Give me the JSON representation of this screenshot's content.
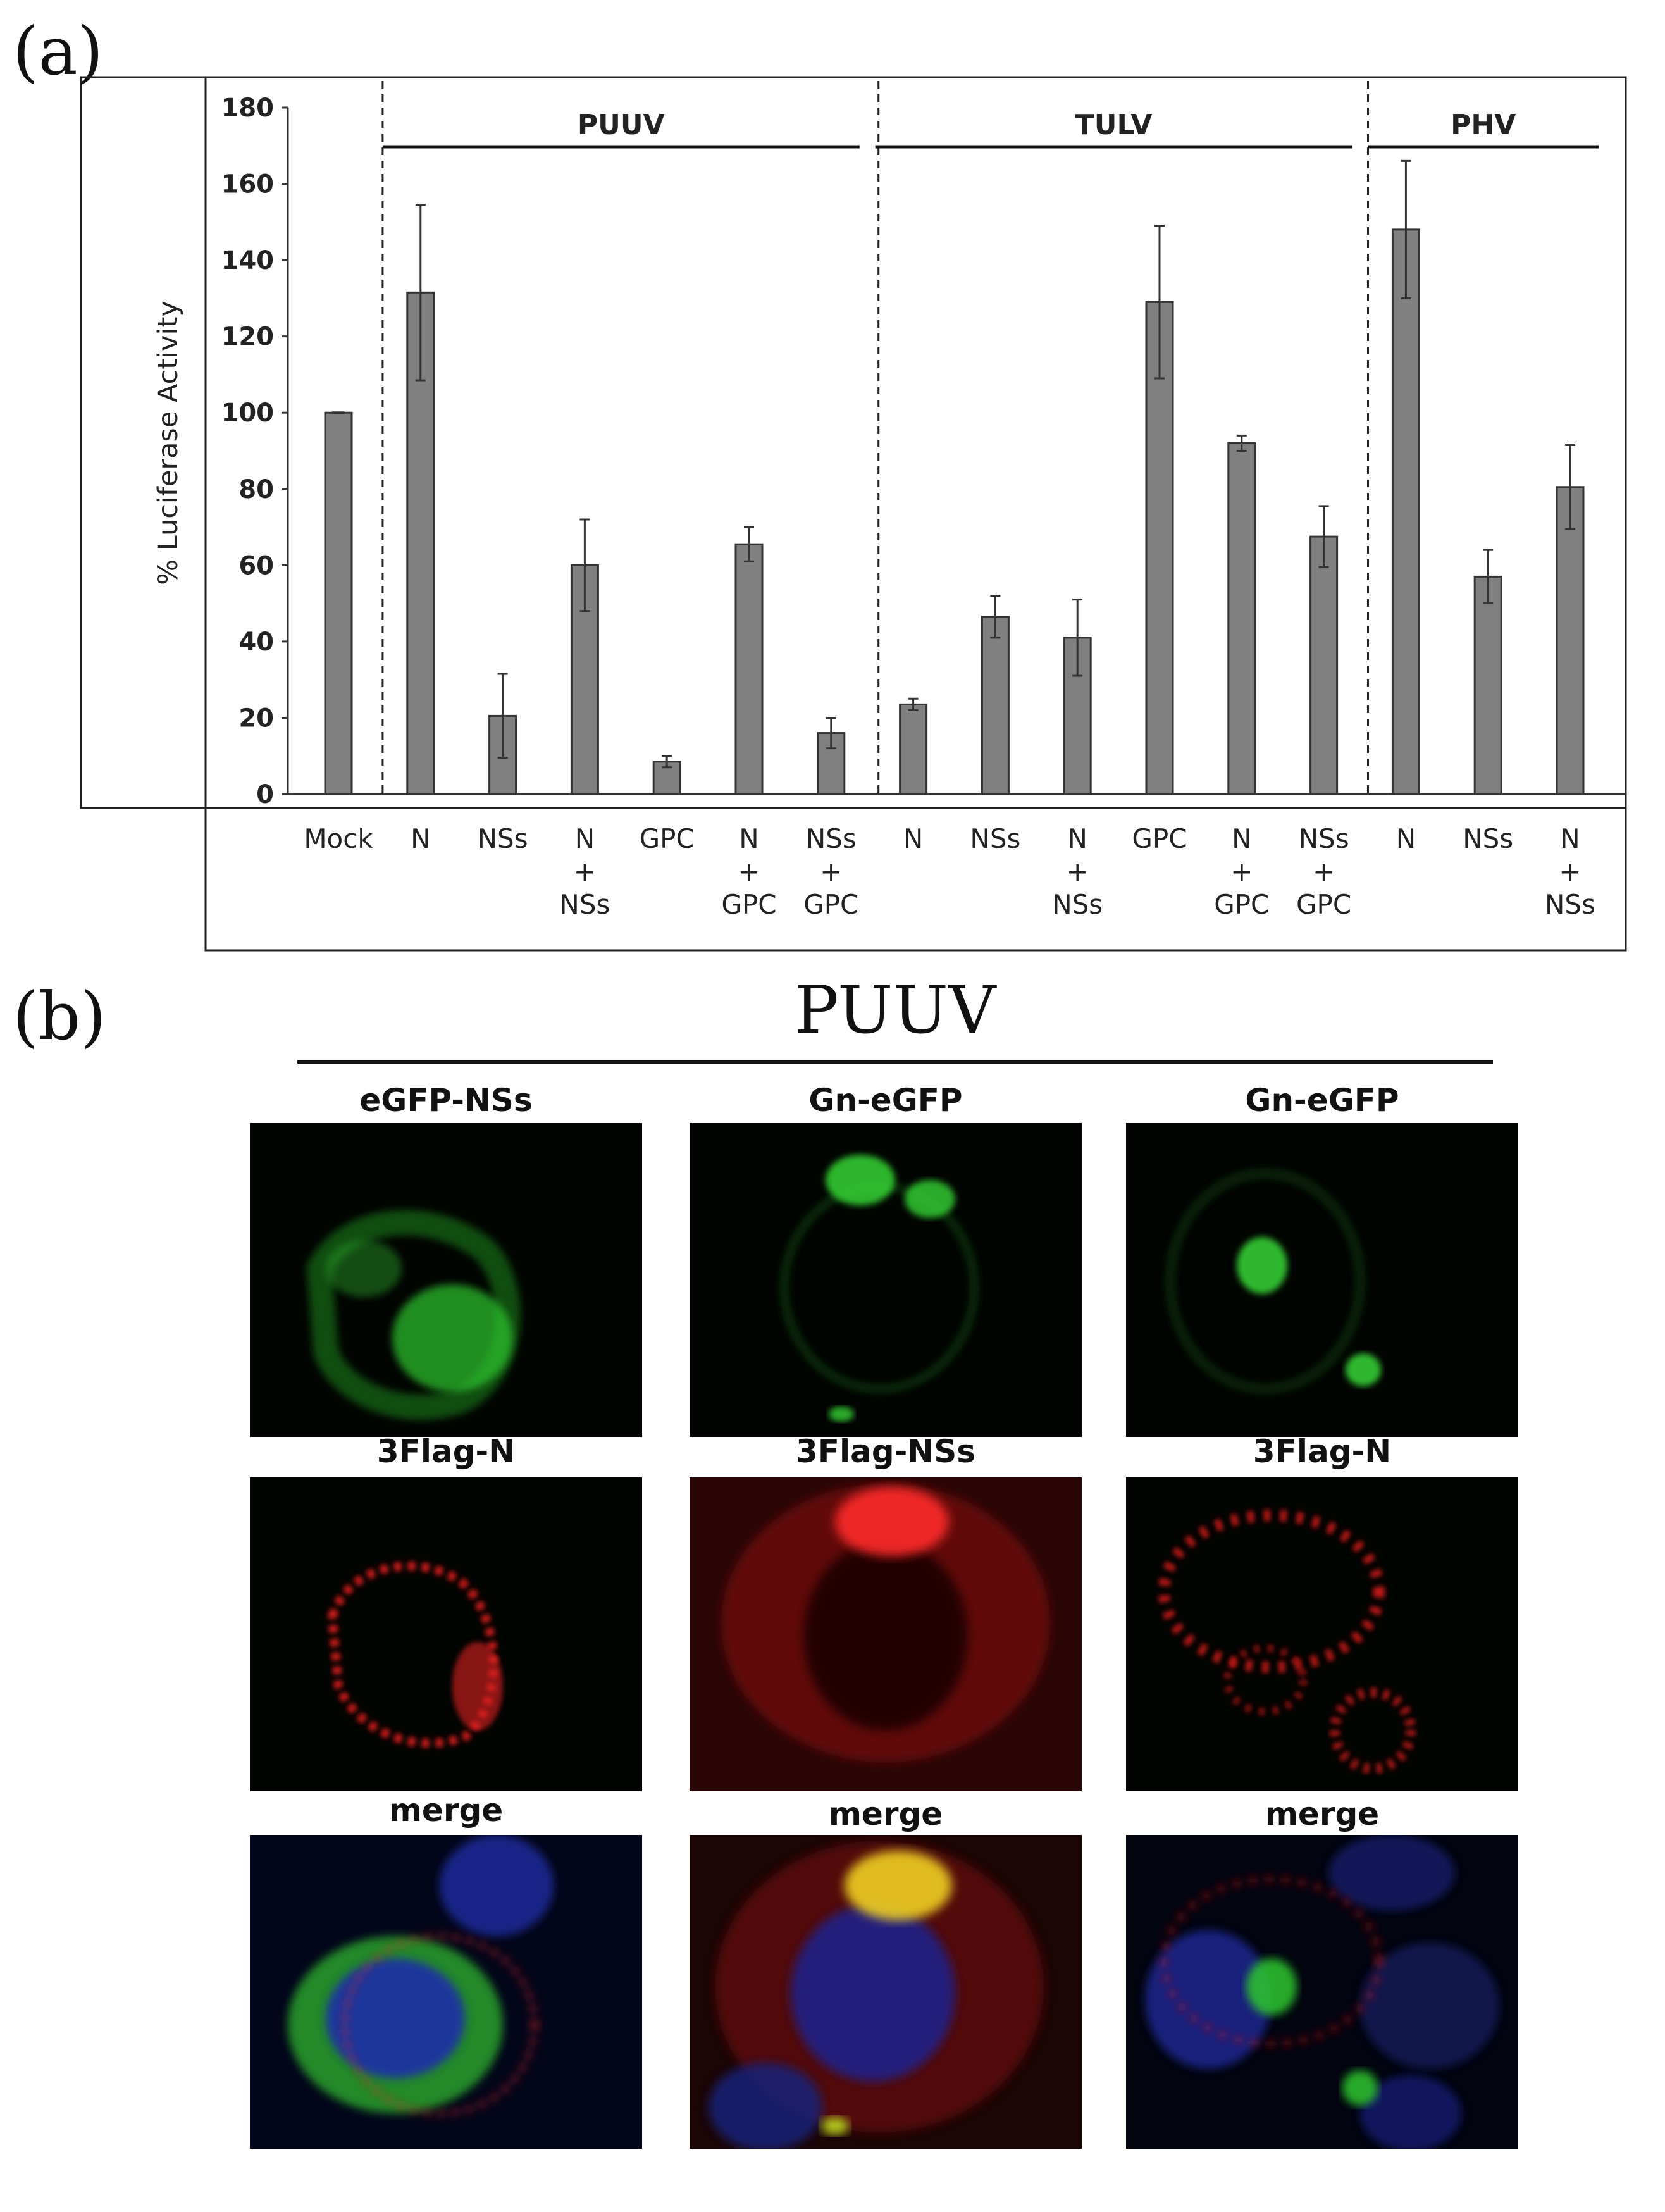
{
  "panel_a_label": "(a)",
  "panel_b_label": "(b)",
  "chart_data": {
    "type": "bar",
    "ylabel": "% Luciferase Activity",
    "ylim": [
      0,
      180
    ],
    "yticks": [
      "0",
      "20",
      "40",
      "60",
      "80",
      "100",
      "120",
      "140",
      "160",
      "180"
    ],
    "grid": false,
    "bar_color": "#808080",
    "categories": [
      [
        "Mock"
      ],
      [
        "N"
      ],
      [
        "NSs"
      ],
      [
        "N",
        "+",
        "NSs"
      ],
      [
        "GPC"
      ],
      [
        "N",
        "+",
        "GPC"
      ],
      [
        "NSs",
        "+",
        "GPC"
      ],
      [
        "N"
      ],
      [
        "NSs"
      ],
      [
        "N",
        "+",
        "NSs"
      ],
      [
        "GPC"
      ],
      [
        "N",
        "+",
        "GPC"
      ],
      [
        "NSs",
        "+",
        "GPC"
      ],
      [
        "N"
      ],
      [
        "NSs"
      ],
      [
        "N",
        "+",
        "NSs"
      ]
    ],
    "values": [
      100,
      131.5,
      20.5,
      60,
      8.5,
      65.5,
      16,
      23.5,
      46.5,
      41,
      129,
      92,
      67.5,
      148,
      57,
      80.5
    ],
    "errors": [
      0,
      23,
      11,
      12,
      1.5,
      4.5,
      4,
      1.5,
      5.5,
      10,
      20,
      2,
      8,
      18,
      7,
      11
    ],
    "groups": [
      {
        "name": "PUUV",
        "start": 1,
        "end": 6
      },
      {
        "name": "TULV",
        "start": 7,
        "end": 12
      },
      {
        "name": "PHV",
        "start": 13,
        "end": 15
      }
    ]
  },
  "panel_b": {
    "header": "PUUV",
    "columns": [
      {
        "top": "eGFP-NSs",
        "middle": "3Flag-N",
        "bottom": "merge"
      },
      {
        "top": "Gn-eGFP",
        "middle": "3Flag-NSs",
        "bottom": "merge"
      },
      {
        "top": "Gn-eGFP",
        "middle": "3Flag-N",
        "bottom": "merge"
      }
    ]
  }
}
